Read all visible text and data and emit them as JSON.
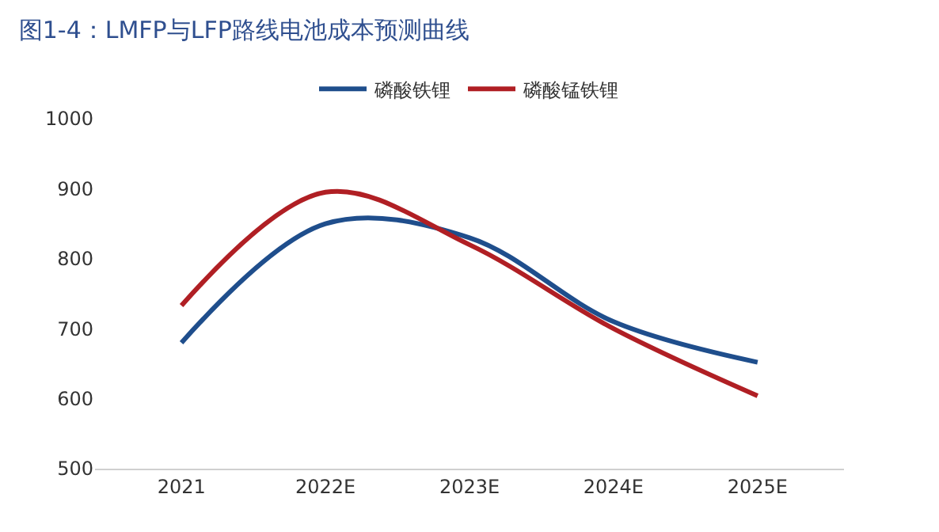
{
  "chart_data": {
    "type": "line",
    "title": "图1-4：LMFP与LFP路线电池成本预测曲线",
    "categories": [
      "2021",
      "2022E",
      "2023E",
      "2024E",
      "2025E"
    ],
    "series": [
      {
        "name": "磷酸铁锂",
        "color": "#1f4e8c",
        "values": [
          680,
          850,
          830,
          710,
          652
        ]
      },
      {
        "name": "磷酸锰铁锂",
        "color": "#b01f24",
        "values": [
          733,
          895,
          820,
          700,
          604
        ]
      }
    ],
    "ylim": [
      500,
      1000
    ],
    "yticks": [
      500,
      600,
      700,
      800,
      900,
      1000
    ],
    "legend": "top",
    "marker": "none",
    "line_style": "solid"
  }
}
